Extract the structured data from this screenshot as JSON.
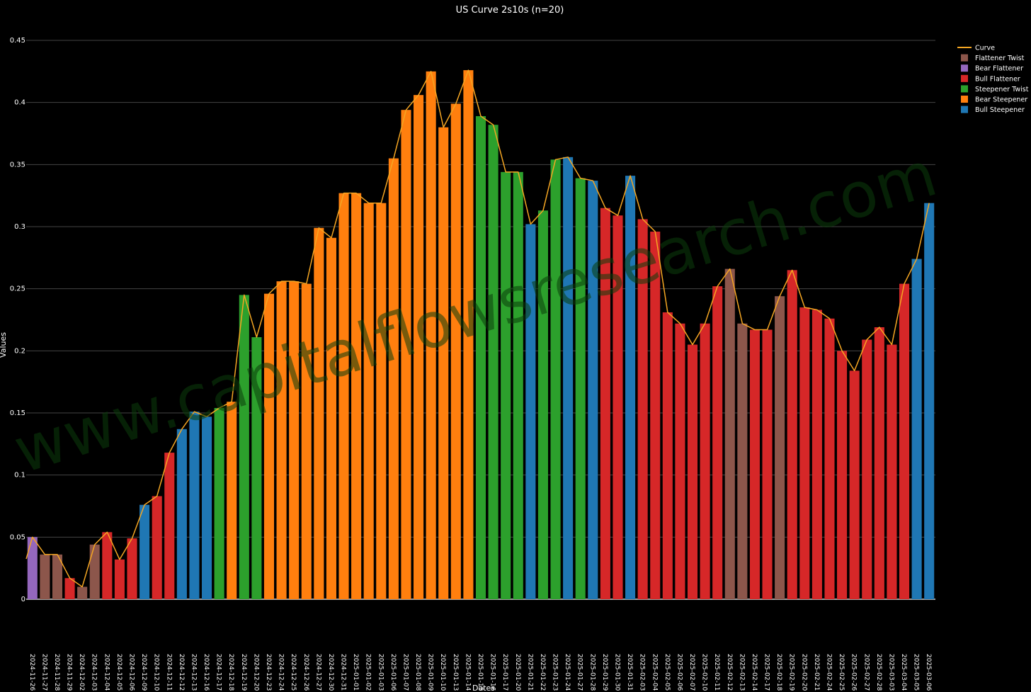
{
  "chart_data": {
    "type": "bar",
    "title": "US Curve 2s10s (n=20)",
    "xlabel": "Dates",
    "ylabel": "Values",
    "ylim": [
      0,
      0.45
    ],
    "yticks": [
      0,
      0.05,
      0.1,
      0.15,
      0.2,
      0.25,
      0.3,
      0.35,
      0.4,
      0.45
    ],
    "ytick_labels": [
      "0",
      "0.05",
      "0.1",
      "0.15",
      "0.2",
      "0.25",
      "0.3",
      "0.35",
      "0.4",
      "0.45"
    ],
    "grid": true,
    "legend_position": "top-right",
    "watermark": "www.capitalflowsresearch.com",
    "categories": [
      "2024-11-26",
      "2024-11-27",
      "2024-11-28",
      "2024-11-29",
      "2024-12-02",
      "2024-12-03",
      "2024-12-04",
      "2024-12-05",
      "2024-12-06",
      "2024-12-09",
      "2024-12-10",
      "2024-12-11",
      "2024-12-12",
      "2024-12-13",
      "2024-12-16",
      "2024-12-17",
      "2024-12-18",
      "2024-12-19",
      "2024-12-20",
      "2024-12-23",
      "2024-12-24",
      "2024-12-25",
      "2024-12-26",
      "2024-12-27",
      "2024-12-30",
      "2024-12-31",
      "2025-01-01",
      "2025-01-02",
      "2025-01-03",
      "2025-01-06",
      "2025-01-07",
      "2025-01-08",
      "2025-01-09",
      "2025-01-10",
      "2025-01-13",
      "2025-01-14",
      "2025-01-15",
      "2025-01-16",
      "2025-01-17",
      "2025-01-20",
      "2025-01-21",
      "2025-01-22",
      "2025-01-23",
      "2025-01-24",
      "2025-01-27",
      "2025-01-28",
      "2025-01-29",
      "2025-01-30",
      "2025-01-31",
      "2025-02-03",
      "2025-02-04",
      "2025-02-05",
      "2025-02-06",
      "2025-02-07",
      "2025-02-10",
      "2025-02-11",
      "2025-02-12",
      "2025-02-13",
      "2025-02-14",
      "2025-02-17",
      "2025-02-18",
      "2025-02-19",
      "2025-02-20",
      "2025-02-21",
      "2025-02-24",
      "2025-02-25",
      "2025-02-26",
      "2025-02-27",
      "2025-02-28",
      "2025-03-03",
      "2025-03-04",
      "2025-03-05",
      "2025-03-06"
    ],
    "xtick_labels": [
      "2024-11-26",
      "2024-11-27",
      "2024-11-28",
      "2024-11-29",
      "2024-12-02",
      "2024-12-03",
      "2024-12-04",
      "2024-12-05",
      "2024-12-06",
      "2024-12-09",
      "2024-12-10",
      "2024-12-11",
      "2024-12-12",
      "2024-12-13",
      "2024-12-16",
      "2024-12-17",
      "2024-12-18",
      "2024-12-19",
      "2024-12-20",
      "2024-12-23",
      "2024-12-24",
      "2024-12-25",
      "2024-12-26",
      "2024-12-27",
      "2024-12-30",
      "2024-12-31",
      "2025-01-01",
      "2025-01-02",
      "2025-01-03",
      "2025-01-06",
      "2025-01-07",
      "2025-01-08",
      "2025-01-09",
      "2025-01-10",
      "2025-01-13",
      "2025-01-14",
      "2025-01-15",
      "2025-01-16",
      "2025-01-17",
      "2025-01-20",
      "2025-01-21",
      "2025-01-22",
      "2025-01-23",
      "2025-01-24",
      "2025-01-27",
      "2025-01-28",
      "2025-01-29",
      "2025-01-30",
      "2025-01-31",
      "2025-02-03",
      "2025-02-04",
      "2025-02-05",
      "2025-02-06",
      "2025-02-07",
      "2025-02-10",
      "2025-02-11",
      "2025-02-12",
      "2025-02-13",
      "2025-02-14",
      "2025-02-17",
      "2025-02-18",
      "2025-02-19",
      "2025-02-20",
      "2025-02-21",
      "2025-02-24",
      "2025-02-25",
      "2025-02-26",
      "2025-02-27",
      "2025-02-28",
      "2025-03-03",
      "2025-03-04",
      "2025-03-05",
      "2025-03-06"
    ],
    "values": [
      0.05,
      0.036,
      0.036,
      0.017,
      0.01,
      0.044,
      0.054,
      0.032,
      0.049,
      0.076,
      0.083,
      0.118,
      0.137,
      0.151,
      0.147,
      0.154,
      0.159,
      0.245,
      0.211,
      0.246,
      0.256,
      0.256,
      0.254,
      0.299,
      0.291,
      0.327,
      0.327,
      0.319,
      0.319,
      0.355,
      0.394,
      0.406,
      0.425,
      0.38,
      0.399,
      0.426,
      0.389,
      0.382,
      0.344,
      0.344,
      0.302,
      0.313,
      0.354,
      0.356,
      0.339,
      0.337,
      0.315,
      0.309,
      0.341,
      0.306,
      0.296,
      0.231,
      0.222,
      0.205,
      0.222,
      0.252,
      0.266,
      0.222,
      0.217,
      0.217,
      0.244,
      0.265,
      0.235,
      0.233,
      0.226,
      0.2,
      0.184,
      0.209,
      0.219,
      0.205,
      0.254,
      0.274,
      0.319
    ],
    "regimes": [
      "Bear Flattener",
      "Flattener Twist",
      "Flattener Twist",
      "Bull Flattener",
      "Flattener Twist",
      "Flattener Twist",
      "Bull Flattener",
      "Bull Flattener",
      "Bull Flattener",
      "Bull Steepener",
      "Bull Flattener",
      "Bull Flattener",
      "Bull Steepener",
      "Bull Steepener",
      "Bull Steepener",
      "Steepener Twist",
      "Bear Steepener",
      "Steepener Twist",
      "Steepener Twist",
      "Bear Steepener",
      "Bear Steepener",
      "Bear Steepener",
      "Bear Steepener",
      "Bear Steepener",
      "Bear Steepener",
      "Bear Steepener",
      "Bear Steepener",
      "Bear Steepener",
      "Bear Steepener",
      "Bear Steepener",
      "Bear Steepener",
      "Bear Steepener",
      "Bear Steepener",
      "Bear Steepener",
      "Bear Steepener",
      "Bear Steepener",
      "Steepener Twist",
      "Steepener Twist",
      "Steepener Twist",
      "Steepener Twist",
      "Bull Steepener",
      "Steepener Twist",
      "Steepener Twist",
      "Bull Steepener",
      "Steepener Twist",
      "Bull Steepener",
      "Bull Flattener",
      "Bull Flattener",
      "Bull Steepener",
      "Bull Flattener",
      "Bull Flattener",
      "Bull Flattener",
      "Bull Flattener",
      "Bull Flattener",
      "Bull Flattener",
      "Bull Flattener",
      "Flattener Twist",
      "Flattener Twist",
      "Bull Flattener",
      "Bull Flattener",
      "Flattener Twist",
      "Bull Flattener",
      "Bull Flattener",
      "Bull Flattener",
      "Bull Flattener",
      "Bull Flattener",
      "Bull Flattener",
      "Bull Flattener",
      "Bull Flattener",
      "Bull Flattener",
      "Bull Flattener",
      "Bull Steepener",
      "Bull Steepener"
    ],
    "curve_line": {
      "name": "Curve",
      "color": "#f5a623"
    },
    "legend": [
      {
        "name": "Curve",
        "kind": "line",
        "color": "#f5a623"
      },
      {
        "name": "Flattener Twist",
        "kind": "box",
        "color": "#8c564b"
      },
      {
        "name": "Bear Flattener",
        "kind": "box",
        "color": "#9467bd"
      },
      {
        "name": "Bull Flattener",
        "kind": "box",
        "color": "#d62728"
      },
      {
        "name": "Steepener Twist",
        "kind": "box",
        "color": "#2ca02c"
      },
      {
        "name": "Bear Steepener",
        "kind": "box",
        "color": "#ff7f0e"
      },
      {
        "name": "Bull Steepener",
        "kind": "box",
        "color": "#1f77b4"
      }
    ],
    "colors": {
      "Flattener Twist": "#8c564b",
      "Bear Flattener": "#9467bd",
      "Bull Flattener": "#d62728",
      "Steepener Twist": "#2ca02c",
      "Bear Steepener": "#ff7f0e",
      "Bull Steepener": "#1f77b4"
    },
    "background_color": "#000000",
    "grid_color": "#444444"
  }
}
